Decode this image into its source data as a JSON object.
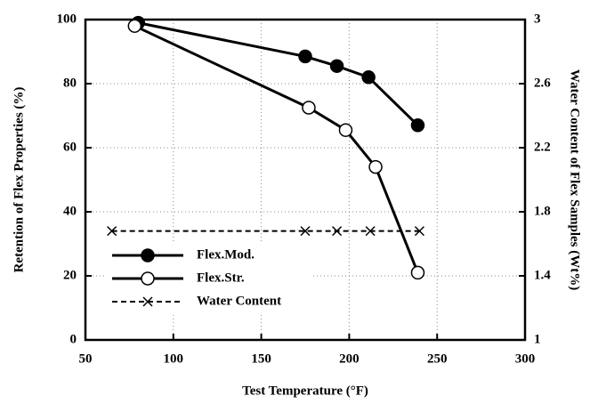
{
  "chart_data": {
    "type": "line",
    "xlabel": "Test Temperature (°F)",
    "ylabel": "Retention of Flex Properties (%)",
    "y2label": "Water Content of Flex Samples (Wt%)",
    "xlim": [
      50,
      300
    ],
    "xticks": [
      50,
      100,
      150,
      200,
      250,
      300
    ],
    "ylim": [
      0,
      100
    ],
    "yticks": [
      0,
      20,
      40,
      60,
      80,
      100
    ],
    "y2lim": [
      1,
      3
    ],
    "y2ticks": [
      1,
      1.4,
      1.8,
      2.2,
      2.6,
      3
    ],
    "grid": true,
    "legend": "lower left",
    "series": [
      {
        "name": "Flex.Mod.",
        "color": "#000000",
        "marker": "filled-circle",
        "linestyle": "solid",
        "x": [
          80,
          175,
          193,
          211,
          239
        ],
        "values": [
          99,
          88.5,
          85.5,
          82,
          67
        ]
      },
      {
        "name": "Flex.Str.",
        "color": "#000000",
        "marker": "open-circle",
        "linestyle": "solid",
        "x": [
          78,
          177,
          198,
          215,
          239
        ],
        "values": [
          98,
          72.5,
          65.5,
          54,
          21
        ]
      },
      {
        "name": "Water Content",
        "color": "#000000",
        "marker": "x",
        "linestyle": "dashed",
        "axis": "y2",
        "x": [
          65,
          175,
          193,
          212,
          240
        ],
        "values": [
          1.68,
          1.68,
          1.68,
          1.68,
          1.68
        ]
      }
    ]
  }
}
